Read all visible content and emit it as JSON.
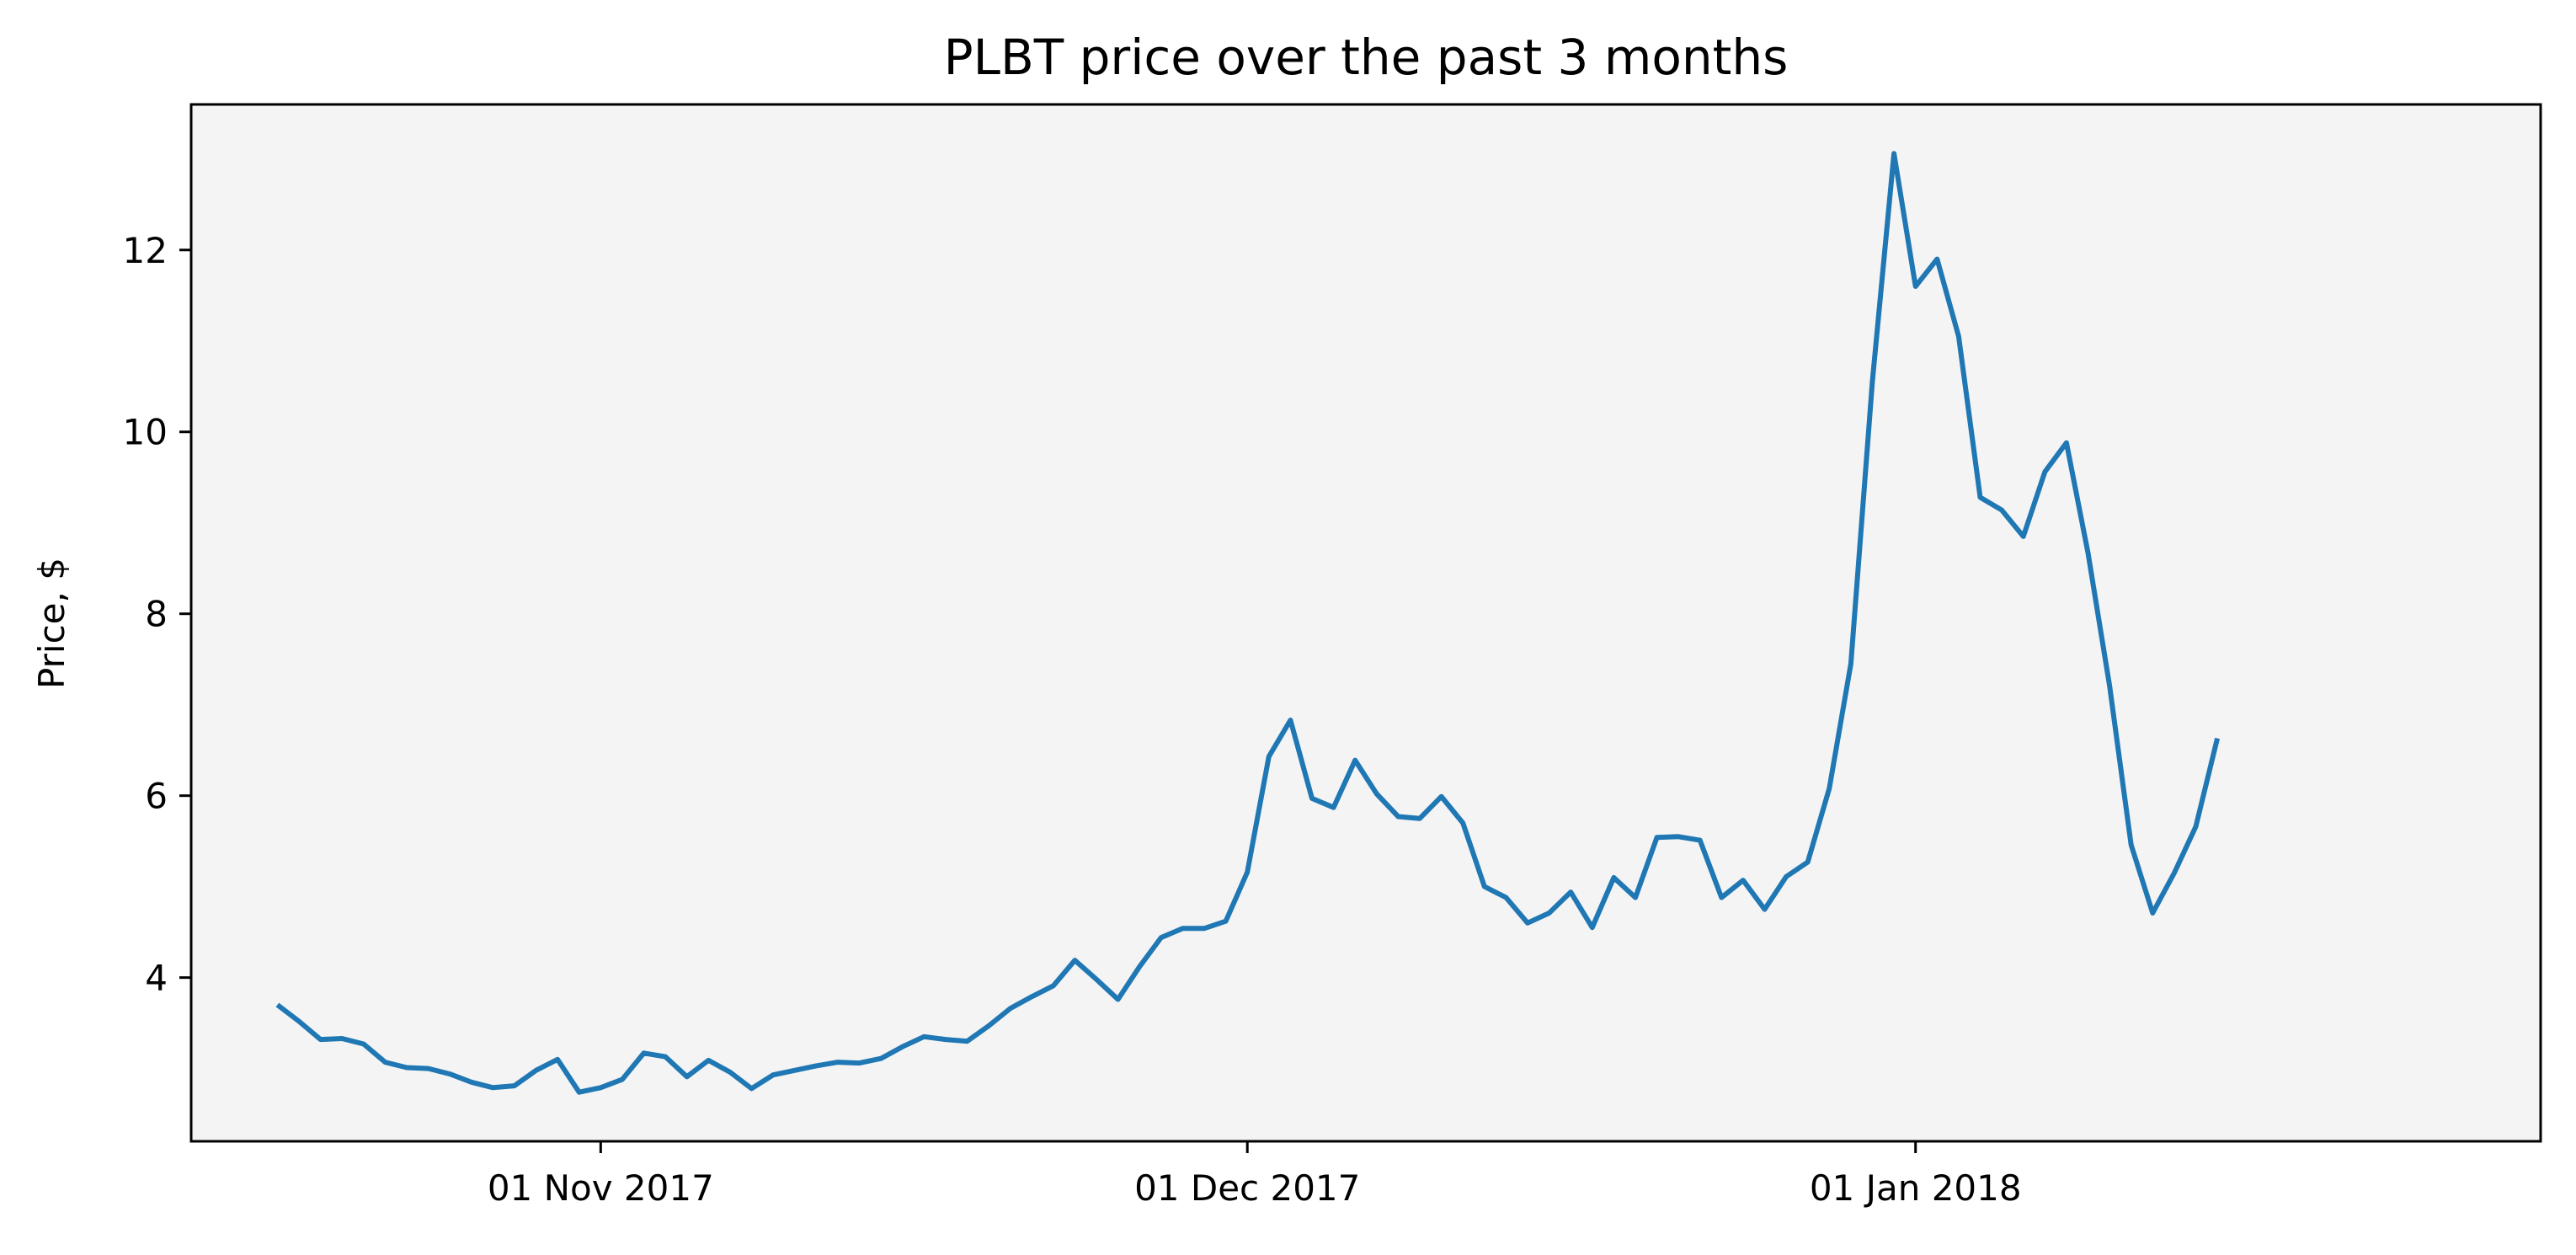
{
  "chart_data": {
    "type": "line",
    "title": "PLBT price over the past 3 months",
    "xlabel": "",
    "ylabel": "Price, $",
    "background_color": "#f4f4f4",
    "line_color": "#1f77b4",
    "grid": false,
    "legend": "none",
    "x_start_date": "2017-10-17",
    "xlim": [
      "2017-10-13",
      "2018-01-30"
    ],
    "ylim": [
      2.2,
      13.6
    ],
    "x_ticks": [
      {
        "date": "2017-11-01",
        "label": "01 Nov 2017"
      },
      {
        "date": "2017-12-01",
        "label": "01 Dec 2017"
      },
      {
        "date": "2018-01-01",
        "label": "01 Jan 2018"
      }
    ],
    "y_ticks": [
      {
        "value": 4,
        "label": "4"
      },
      {
        "value": 6,
        "label": "6"
      },
      {
        "value": 8,
        "label": "8"
      },
      {
        "value": 10,
        "label": "10"
      },
      {
        "value": 12,
        "label": "12"
      }
    ],
    "values": [
      3.7,
      3.52,
      3.32,
      3.33,
      3.27,
      3.07,
      3.01,
      3.0,
      2.94,
      2.85,
      2.79,
      2.81,
      2.98,
      3.1,
      2.74,
      2.79,
      2.88,
      3.17,
      3.13,
      2.91,
      3.09,
      2.96,
      2.78,
      2.93,
      2.98,
      3.03,
      3.07,
      3.06,
      3.11,
      3.24,
      3.35,
      3.32,
      3.3,
      3.47,
      3.66,
      3.79,
      3.91,
      4.19,
      3.98,
      3.76,
      4.12,
      4.44,
      4.54,
      4.54,
      4.62,
      5.16,
      6.43,
      6.83,
      5.97,
      5.87,
      6.39,
      6.02,
      5.77,
      5.75,
      5.99,
      5.7,
      5.0,
      4.88,
      4.6,
      4.71,
      4.94,
      4.55,
      5.1,
      4.88,
      5.54,
      5.55,
      5.51,
      4.88,
      5.07,
      4.75,
      5.11,
      5.27,
      6.08,
      7.45,
      10.56,
      13.06,
      11.6,
      11.9,
      11.05,
      9.28,
      9.14,
      8.85,
      9.56,
      9.88,
      8.67,
      7.21,
      5.46,
      4.71,
      5.15,
      5.66,
      6.63
    ]
  }
}
